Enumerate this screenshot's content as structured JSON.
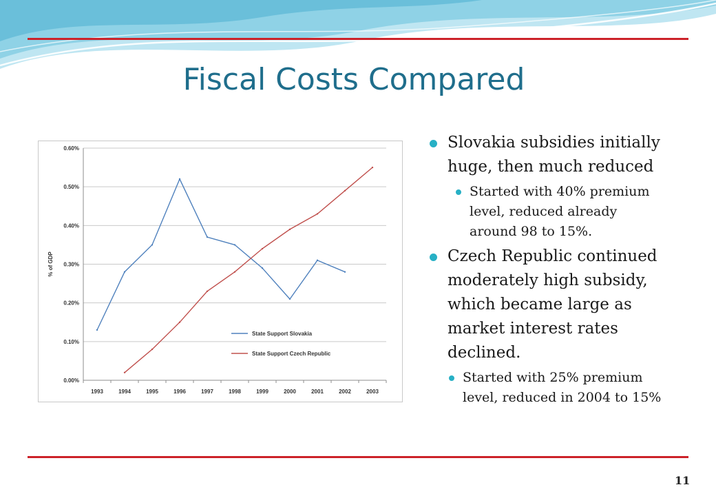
{
  "slide": {
    "title": "Fiscal Costs Compared",
    "page_number": "11"
  },
  "bullets": [
    {
      "text": "Slovakia subsidies initially huge, then much reduced",
      "sub": [
        "Started with 40% premium level, reduced already around 98 to 15%."
      ]
    },
    {
      "text": "Czech Republic continued moderately high subsidy, which became large as market interest rates declined.",
      "sub": [
        "Started with 25% premium level, reduced in 2004 to 15%"
      ]
    }
  ],
  "colors": {
    "title": "#1f6e8c",
    "rule": "#cc2229",
    "bullet": "#27b0c5",
    "slovakia": "#4f81bd",
    "czech": "#c0504d"
  },
  "chart_data": {
    "type": "line",
    "title": "",
    "xlabel": "",
    "ylabel": "% of GDP",
    "categories": [
      "1993",
      "1994",
      "1995",
      "1996",
      "1997",
      "1998",
      "1999",
      "2000",
      "2001",
      "2002",
      "2003"
    ],
    "y_ticks": [
      "0.00%",
      "0.10%",
      "0.20%",
      "0.30%",
      "0.40%",
      "0.50%",
      "0.60%"
    ],
    "ylim": [
      0,
      0.6
    ],
    "grid": true,
    "legend_position": "inside-lower-right",
    "series": [
      {
        "name": "State Support  Slovakia",
        "color": "#4f81bd",
        "values": [
          0.13,
          0.28,
          0.35,
          0.52,
          0.37,
          0.35,
          0.29,
          0.21,
          0.31,
          0.28,
          null
        ]
      },
      {
        "name": "State Support  Czech Republic",
        "color": "#c0504d",
        "values": [
          null,
          0.02,
          0.08,
          0.15,
          0.23,
          0.28,
          0.34,
          0.39,
          0.43,
          0.49,
          0.55
        ]
      }
    ]
  }
}
